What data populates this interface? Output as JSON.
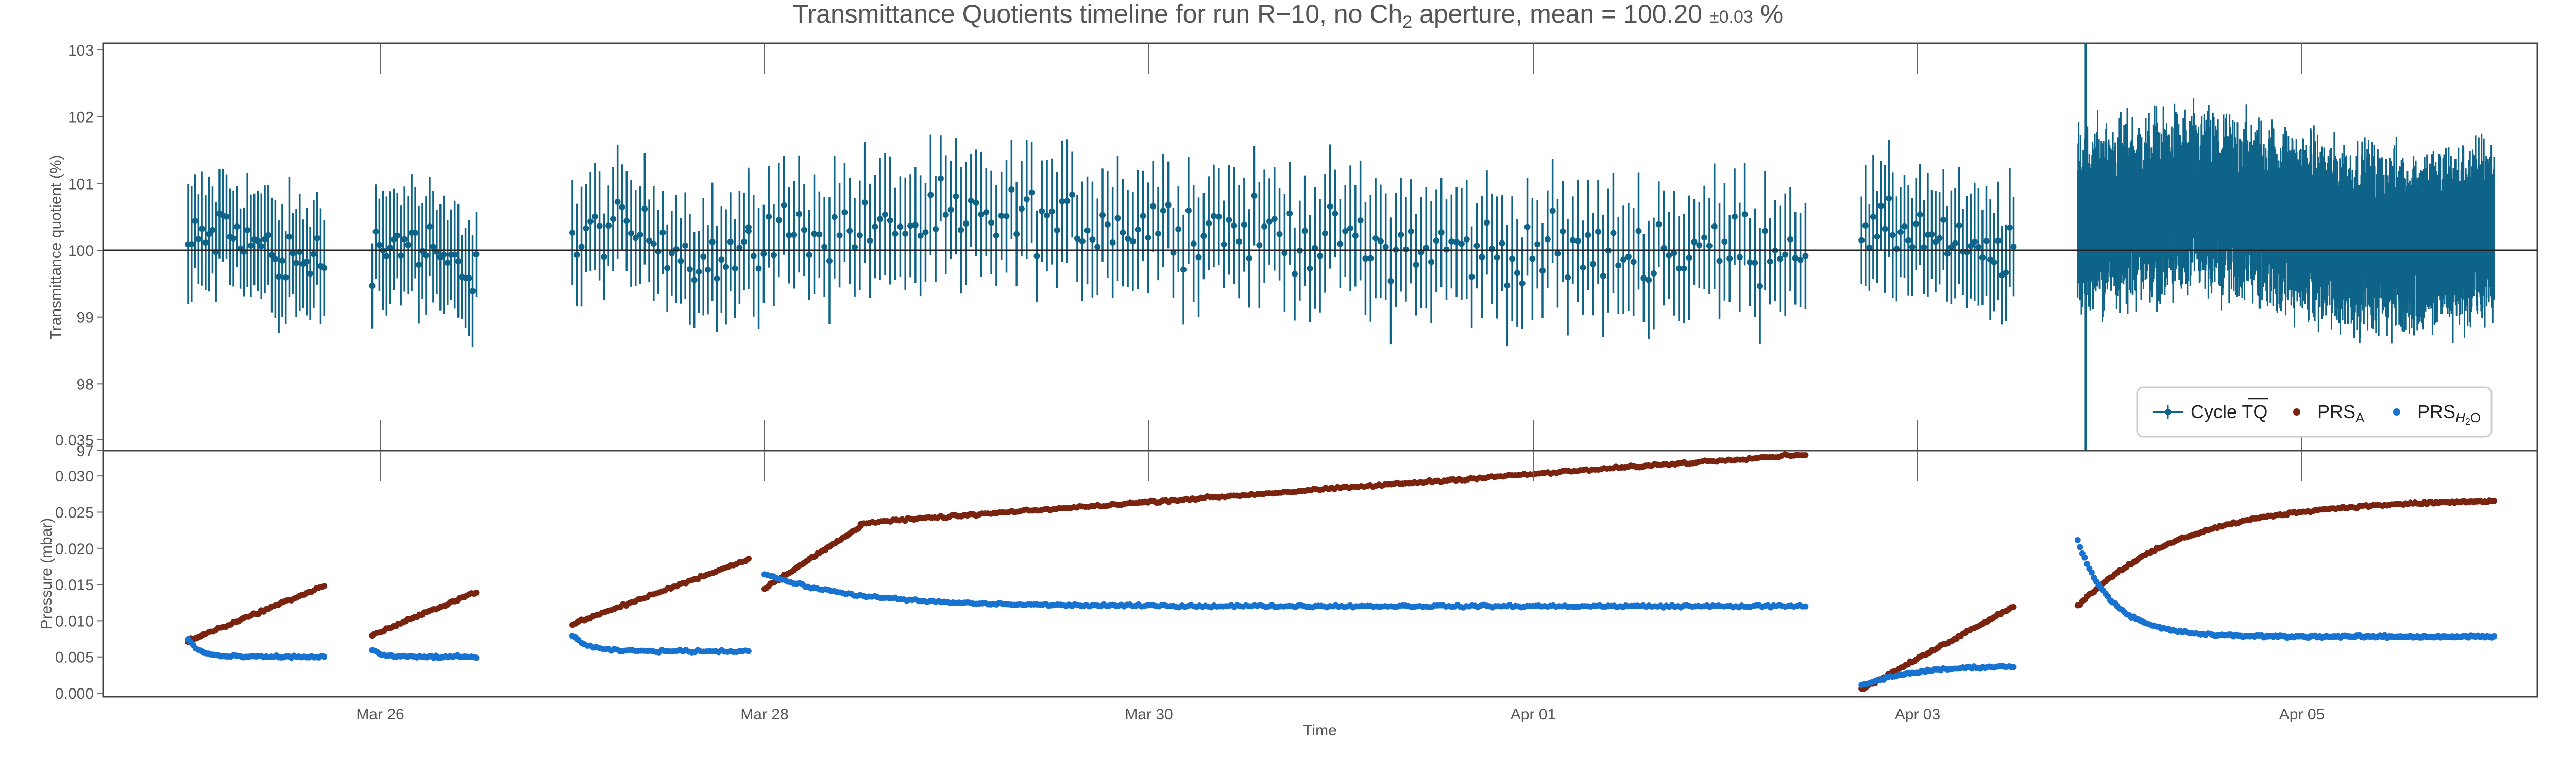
{
  "title": {
    "prefix": "Transmittance Quotients timeline for run R−10, no Ch",
    "sub": "2",
    "middle": " aperture, mean = 100.20 ",
    "uncert": "±0.03",
    "suffix": " %"
  },
  "chart_data": [
    {
      "type": "scatter",
      "panel": "top",
      "ylabel": "Transmittance quotient (%)",
      "ylim": [
        97,
        103.1
      ],
      "yticks": [
        "97",
        "98",
        "99",
        "100",
        "101",
        "102",
        "103"
      ],
      "reference_line": 100,
      "legend_position": "lower-right",
      "series": [
        {
          "name": "Cycle TQ",
          "name_overlined_part": "TQ",
          "name_prefix": "Cycle ",
          "color": "#0e6488",
          "error_bars": true,
          "segments": [
            {
              "x_start": "Mar 25 00:00",
              "x_end": "Mar 25 17:00",
              "n": 40,
              "mean": 100.05,
              "spread": 0.35,
              "err": 0.75
            },
            {
              "x_start": "Mar 25 23:00",
              "x_end": "Mar 26 12:00",
              "n": 30,
              "mean": 99.95,
              "spread": 0.35,
              "err": 0.75
            },
            {
              "x_start": "Mar 27 00:00",
              "x_end": "Mar 27 22:00",
              "n": 40,
              "mean": 100.1,
              "spread": 0.35,
              "err": 0.75
            },
            {
              "x_start": "Mar 27 22:00",
              "x_end": "Apr 02 10:00",
              "n": 210,
              "mean": 100.2,
              "spread": 0.4,
              "err": 0.8
            },
            {
              "x_start": "Apr 02 17:00",
              "x_end": "Apr 03 12:00",
              "n": 40,
              "mean": 100.1,
              "spread": 0.35,
              "err": 0.8
            },
            {
              "x_start": "Apr 03 20:00",
              "x_end": "Apr 06 00:00",
              "n": 900,
              "mean": 100.4,
              "spread": 0.45,
              "err": 0.9
            }
          ]
        }
      ]
    },
    {
      "type": "scatter",
      "panel": "bottom",
      "xlabel": "Time",
      "ylabel": "Pressure (mbar)",
      "ylim": [
        -0.0005,
        0.0335
      ],
      "yticks": [
        "0.000",
        "0.005",
        "0.010",
        "0.015",
        "0.020",
        "0.025",
        "0.030",
        "0.035"
      ],
      "xticks": [
        "Mar 26",
        "Mar 28",
        "Mar 30",
        "Apr 01",
        "Apr 03",
        "Apr 05"
      ],
      "series": [
        {
          "name": "PRS",
          "name_sub": "A",
          "color": "#7a2410",
          "segments": [
            {
              "x_start": "Mar 25 00:00",
              "x_end": "Mar 25 17:00",
              "shape": "linear",
              "y0": 0.0072,
              "y1": 0.0148,
              "n": 55
            },
            {
              "x_start": "Mar 25 23:00",
              "x_end": "Mar 26 12:00",
              "shape": "linear",
              "y0": 0.008,
              "y1": 0.014,
              "n": 45
            },
            {
              "x_start": "Mar 27 00:00",
              "x_end": "Mar 27 22:00",
              "shape": "linear",
              "y0": 0.0095,
              "y1": 0.0185,
              "n": 60
            },
            {
              "x_start": "Mar 28 00:00",
              "x_end": "Mar 28 12:00",
              "shape": "linear",
              "y0": 0.0145,
              "y1": 0.023,
              "n": 50
            },
            {
              "x_start": "Mar 28 12:00",
              "x_end": "Apr 02 10:00",
              "shape": "linear",
              "y0": 0.0235,
              "y1": 0.033,
              "n": 320
            },
            {
              "x_start": "Apr 02 17:00",
              "x_end": "Apr 03 12:00",
              "shape": "linear",
              "y0": 0.0005,
              "y1": 0.012,
              "n": 70
            },
            {
              "x_start": "Apr 03 20:00",
              "x_end": "Apr 06 00:00",
              "shape": "saturating",
              "y0": 0.012,
              "y1": 0.0265,
              "n": 180
            }
          ]
        },
        {
          "name": "PRS",
          "name_sub": "H",
          "name_sub2": "2",
          "name_sub3": "O",
          "color": "#1772d0",
          "segments": [
            {
              "x_start": "Mar 25 00:00",
              "x_end": "Mar 25 17:00",
              "shape": "decay",
              "y0": 0.0075,
              "y1": 0.005,
              "n": 55
            },
            {
              "x_start": "Mar 25 23:00",
              "x_end": "Mar 26 12:00",
              "shape": "decay",
              "y0": 0.006,
              "y1": 0.005,
              "n": 45
            },
            {
              "x_start": "Mar 27 00:00",
              "x_end": "Mar 27 22:00",
              "shape": "decay",
              "y0": 0.008,
              "y1": 0.0058,
              "n": 60
            },
            {
              "x_start": "Mar 28 00:00",
              "x_end": "Apr 02 10:00",
              "shape": "decay",
              "y0": 0.0165,
              "y1": 0.012,
              "n": 360
            },
            {
              "x_start": "Apr 02 17:00",
              "x_end": "Apr 03 12:00",
              "shape": "rise",
              "y0": 0.001,
              "y1": 0.0037,
              "n": 70
            },
            {
              "x_start": "Apr 03 20:00",
              "x_end": "Apr 06 00:00",
              "shape": "decay",
              "y0": 0.021,
              "y1": 0.0078,
              "n": 180
            }
          ]
        }
      ]
    }
  ]
}
